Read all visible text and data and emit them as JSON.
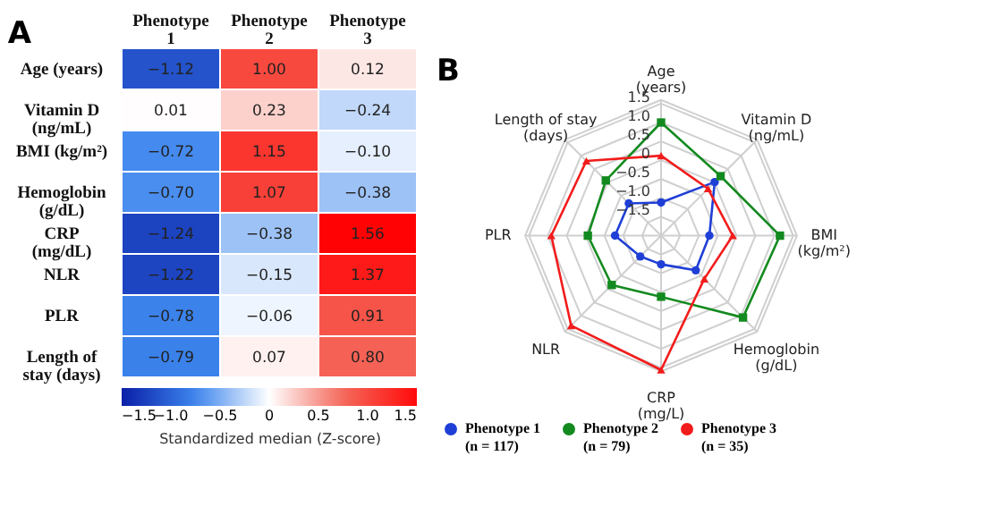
{
  "chart_data": [
    {
      "type": "heatmap",
      "annotations": [
        "A"
      ],
      "categories": [
        "Phenotype\n1",
        "Phenotype\n2",
        "Phenotype\n3"
      ],
      "y_categories": [
        "Age (years)",
        "Vitamin D\n(ng/mL)",
        "BMI (kg/m²)",
        "Hemoglobin\n(g/dL)",
        "CRP\n(mg/dL)",
        "NLR",
        "PLR",
        "Length of\nstay (days)"
      ],
      "cells": [
        [
          -1.12,
          1.0,
          0.12
        ],
        [
          0.01,
          0.23,
          -0.24
        ],
        [
          -0.72,
          1.15,
          -0.1
        ],
        [
          -0.7,
          1.07,
          -0.38
        ],
        [
          -1.24,
          -0.38,
          1.56
        ],
        [
          -1.22,
          -0.15,
          1.37
        ],
        [
          -0.78,
          -0.06,
          0.91
        ],
        [
          -0.79,
          0.07,
          0.8
        ]
      ],
      "cell_labels": [
        [
          "−1.12",
          "1.00",
          "0.12"
        ],
        [
          "0.01",
          "0.23",
          "−0.24"
        ],
        [
          "−0.72",
          "1.15",
          "−0.10"
        ],
        [
          "−0.70",
          "1.07",
          "−0.38"
        ],
        [
          "−1.24",
          "−0.38",
          "1.56"
        ],
        [
          "−1.22",
          "−0.15",
          "1.37"
        ],
        [
          "−0.78",
          "−0.06",
          "0.91"
        ],
        [
          "−0.79",
          "0.07",
          "0.80"
        ]
      ],
      "clabel": "Standardized median (Z-score)",
      "clim": [
        -1.5,
        1.5
      ],
      "cticks": [
        {
          "value": -1.5,
          "label": "−1.5"
        },
        {
          "value": -1.0,
          "label": "−1.0"
        },
        {
          "value": -0.5,
          "label": "−0.5"
        },
        0,
        0.5,
        {
          "value": 1.0,
          "label": "1.0"
        },
        1.5
      ]
    },
    {
      "type": "radar",
      "annotations": [
        "B"
      ],
      "categories": [
        "Age\n(years)",
        "Vitamin D\n(ng/mL)",
        "BMI\n(kg/m²)",
        "Hemoglobin\n(g/dL)",
        "CRP\n(mg/L)",
        "NLR",
        "PLR",
        "Length of stay\n(days)"
      ],
      "series": [
        {
          "name": "Phenotype 1\n(n = 117)",
          "color": "#1f3fd6",
          "marker": "circle",
          "values": [
            -1.12,
            0.01,
            -0.72,
            -0.7,
            -1.24,
            -1.22,
            -0.78,
            -0.79
          ]
        },
        {
          "name": "Phenotype 2\n(n = 79)",
          "color": "#138a1f",
          "marker": "square",
          "values": [
            1.0,
            0.23,
            1.15,
            1.07,
            -0.38,
            -0.15,
            -0.06,
            0.07
          ]
        },
        {
          "name": "Phenotype 3\n(n = 35)",
          "color": "#f21c1c",
          "marker": "triangle",
          "values": [
            0.12,
            -0.24,
            -0.1,
            -0.38,
            1.56,
            1.37,
            0.91,
            0.8
          ]
        }
      ],
      "ylim": [
        -2,
        1.6
      ],
      "yticks": [
        {
          "value": -1.5,
          "label": "−1.5"
        },
        {
          "value": -1.0,
          "label": "−1.0"
        },
        {
          "value": -0.5,
          "label": "−0.5"
        },
        0,
        0.5,
        {
          "value": 1.0,
          "label": "1.0"
        },
        1.5
      ],
      "grid": true,
      "legend": "bottom"
    }
  ]
}
